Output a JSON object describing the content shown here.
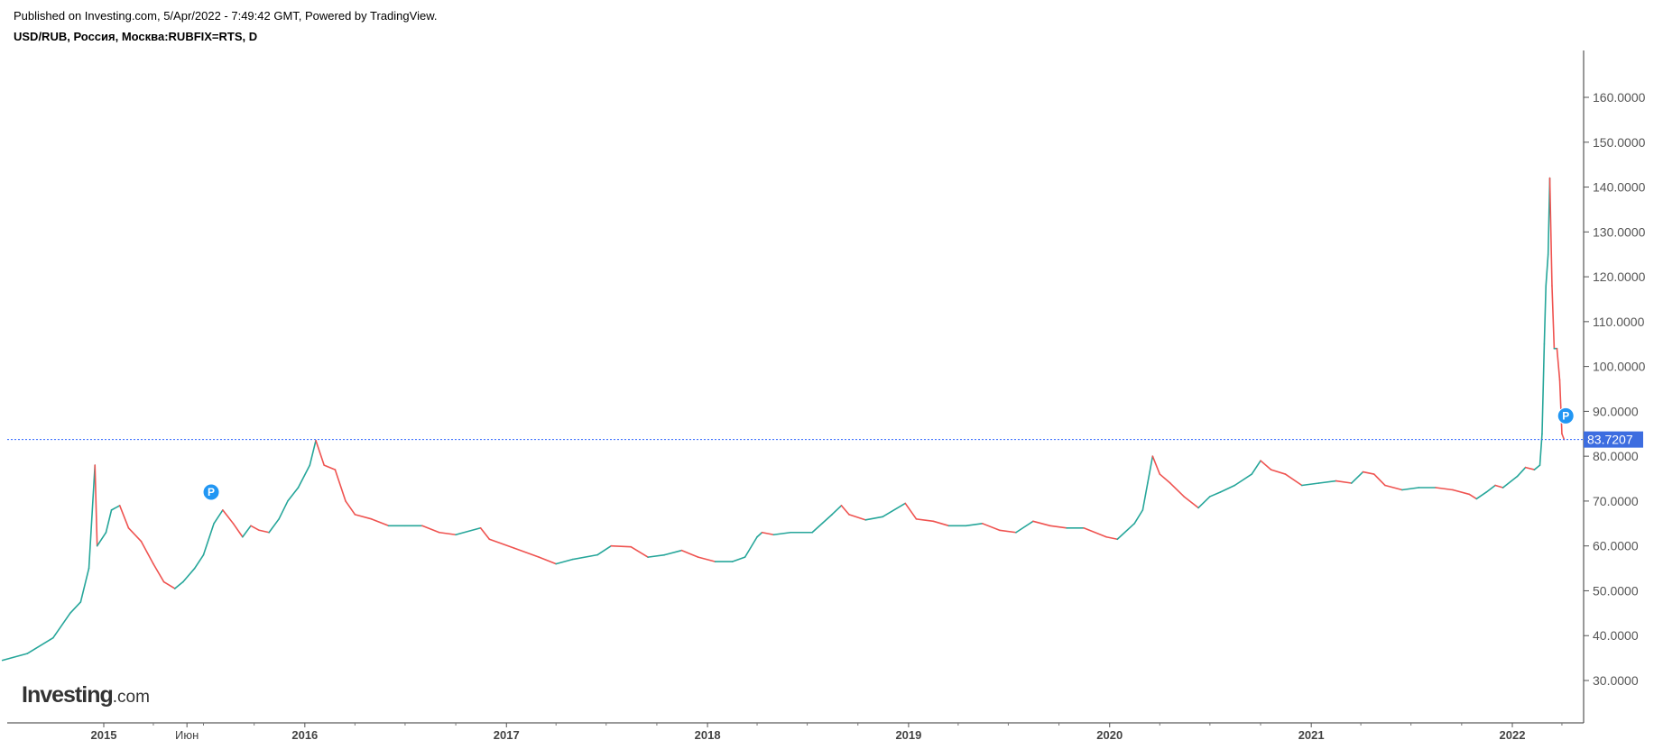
{
  "header": {
    "published": "Published on Investing.com, 5/Apr/2022 - 7:49:42 GMT, Powered by TradingView.",
    "symbol": "USD/RUB, Россия, Москва:RUBFIX=RTS, D"
  },
  "logo": {
    "name": "Investing",
    "suffix": ".com"
  },
  "colors": {
    "up": "#26a69a",
    "down": "#ef5350",
    "price_line": "#2962ff",
    "price_label_bg": "#3d6de0",
    "marker": "#2196f3",
    "axis": "#555555"
  },
  "chart_data": {
    "type": "line",
    "title": "USD/RUB, Россия, Москва:RUBFIX=RTS, D",
    "ylim": [
      20,
      165
    ],
    "y_ticks": [
      30,
      40,
      50,
      60,
      70,
      80,
      90,
      100,
      110,
      120,
      130,
      140,
      150,
      160
    ],
    "y_tick_labels": [
      "30.0000",
      "40.0000",
      "50.0000",
      "60.0000",
      "70.0000",
      "80.0000",
      "90.0000",
      "100.0000",
      "110.0000",
      "120.0000",
      "130.0000",
      "140.0000",
      "150.0000",
      "160.0000"
    ],
    "xlim": [
      "2014-07-01",
      "2022-04-20"
    ],
    "x_labels": [
      {
        "date": "2015-01-01",
        "text": "2015"
      },
      {
        "date": "2015-06-01",
        "text": "Июн"
      },
      {
        "date": "2016-01-01",
        "text": "2016"
      },
      {
        "date": "2017-01-01",
        "text": "2017"
      },
      {
        "date": "2018-01-01",
        "text": "2018"
      },
      {
        "date": "2019-01-01",
        "text": "2019"
      },
      {
        "date": "2020-01-01",
        "text": "2020"
      },
      {
        "date": "2021-01-01",
        "text": "2021"
      },
      {
        "date": "2022-01-01",
        "text": "2022"
      }
    ],
    "last_price": 83.7207,
    "last_price_label": "83.7207",
    "markers": [
      {
        "date": "2015-07-15",
        "value": 72,
        "label": "P"
      },
      {
        "date": "2022-04-08",
        "value": 89,
        "label": "P"
      }
    ],
    "series": [
      {
        "x": [
          "2014-07-01",
          "2014-08-15",
          "2014-10-01",
          "2014-11-01",
          "2014-11-20",
          "2014-12-05",
          "2014-12-16",
          "2014-12-20",
          "2015-01-05",
          "2015-01-15",
          "2015-01-30",
          "2015-02-15",
          "2015-03-10",
          "2015-04-01",
          "2015-04-20",
          "2015-05-10",
          "2015-05-25",
          "2015-06-15",
          "2015-07-01",
          "2015-07-20",
          "2015-08-05",
          "2015-08-24",
          "2015-09-10",
          "2015-09-25",
          "2015-10-10",
          "2015-10-28",
          "2015-11-15",
          "2015-12-01",
          "2015-12-20",
          "2016-01-10",
          "2016-01-21",
          "2016-02-05",
          "2016-02-25",
          "2016-03-15",
          "2016-04-01",
          "2016-05-01",
          "2016-06-01",
          "2016-07-01",
          "2016-08-01",
          "2016-09-01",
          "2016-10-01",
          "2016-11-15",
          "2016-12-01",
          "2017-01-15",
          "2017-03-01",
          "2017-04-01",
          "2017-05-01",
          "2017-06-15",
          "2017-07-10",
          "2017-08-15",
          "2017-09-15",
          "2017-10-15",
          "2017-11-15",
          "2017-12-15",
          "2018-01-15",
          "2018-02-15",
          "2018-03-10",
          "2018-04-01",
          "2018-04-10",
          "2018-05-01",
          "2018-06-01",
          "2018-07-10",
          "2018-08-15",
          "2018-09-01",
          "2018-09-15",
          "2018-10-15",
          "2018-11-15",
          "2018-12-26",
          "2019-01-15",
          "2019-02-15",
          "2019-03-15",
          "2019-04-15",
          "2019-05-15",
          "2019-06-15",
          "2019-07-15",
          "2019-08-15",
          "2019-09-15",
          "2019-10-15",
          "2019-11-15",
          "2019-12-26",
          "2020-01-15",
          "2020-02-15",
          "2020-03-01",
          "2020-03-10",
          "2020-03-19",
          "2020-04-01",
          "2020-04-20",
          "2020-05-15",
          "2020-06-10",
          "2020-07-01",
          "2020-07-20",
          "2020-08-15",
          "2020-09-15",
          "2020-10-01",
          "2020-10-20",
          "2020-11-15",
          "2020-12-15",
          "2021-01-15",
          "2021-02-15",
          "2021-03-15",
          "2021-04-05",
          "2021-04-25",
          "2021-05-15",
          "2021-06-15",
          "2021-07-15",
          "2021-08-15",
          "2021-09-15",
          "2021-10-15",
          "2021-10-28",
          "2021-11-15",
          "2021-12-01",
          "2021-12-15",
          "2022-01-10",
          "2022-01-25",
          "2022-02-10",
          "2022-02-20",
          "2022-02-24",
          "2022-02-28",
          "2022-03-03",
          "2022-03-07",
          "2022-03-10",
          "2022-03-14",
          "2022-03-18",
          "2022-03-23",
          "2022-03-28",
          "2022-04-01",
          "2022-04-05"
        ],
        "y": [
          34.5,
          36,
          39.5,
          45,
          47.5,
          55,
          78,
          60,
          63,
          68,
          69,
          64,
          61,
          56,
          52,
          50.5,
          52,
          55,
          58,
          65,
          68,
          65,
          62,
          64.5,
          63.5,
          63,
          66,
          70,
          73,
          78,
          83.5,
          78,
          77,
          70,
          67,
          66,
          64.5,
          64.5,
          64.5,
          63,
          62.5,
          64,
          61.5,
          59.5,
          57.5,
          56,
          57,
          58,
          60,
          59.8,
          57.5,
          58,
          59,
          57.5,
          56.5,
          56.5,
          57.5,
          62,
          63,
          62.5,
          63,
          63,
          67,
          69,
          67,
          65.8,
          66.5,
          69.5,
          66,
          65.5,
          64.5,
          64.5,
          65,
          63.5,
          63,
          65.5,
          64.5,
          64,
          64,
          62,
          61.5,
          65,
          68,
          74,
          80,
          76,
          74,
          71,
          68.5,
          71,
          72,
          73.5,
          76,
          79,
          77,
          76,
          73.5,
          74,
          74.5,
          74,
          76.5,
          76,
          73.5,
          72.5,
          73,
          73,
          72.5,
          71.5,
          70.5,
          72,
          73.5,
          73,
          75.5,
          77.5,
          77,
          78,
          85,
          105,
          118,
          125,
          142,
          118,
          104,
          104,
          97,
          85,
          83.72
        ]
      }
    ]
  }
}
